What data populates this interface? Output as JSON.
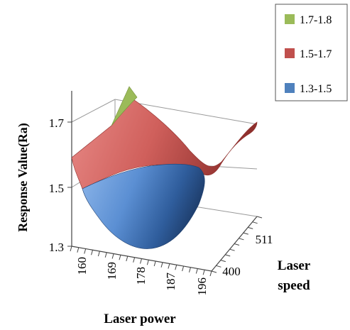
{
  "chart_data": {
    "type": "surface",
    "title": "",
    "ylabel": "Response Value(Ra)",
    "xlabel": "Laser power",
    "zlabel": "Laser speed",
    "x_ticks": [
      "160",
      "169",
      "178",
      "187",
      "196"
    ],
    "z_ticks": [
      "400",
      "511"
    ],
    "y_ticks": [
      "1.3",
      "1.5",
      "1.7"
    ],
    "ylim": [
      1.3,
      1.8
    ],
    "legend_position": "top-right",
    "legend": [
      {
        "label": "1.7-1.8",
        "color": "#9bbb59"
      },
      {
        "label": "1.5-1.7",
        "color": "#c0504d"
      },
      {
        "label": "1.3-1.5",
        "color": "#4f81bd"
      }
    ]
  }
}
